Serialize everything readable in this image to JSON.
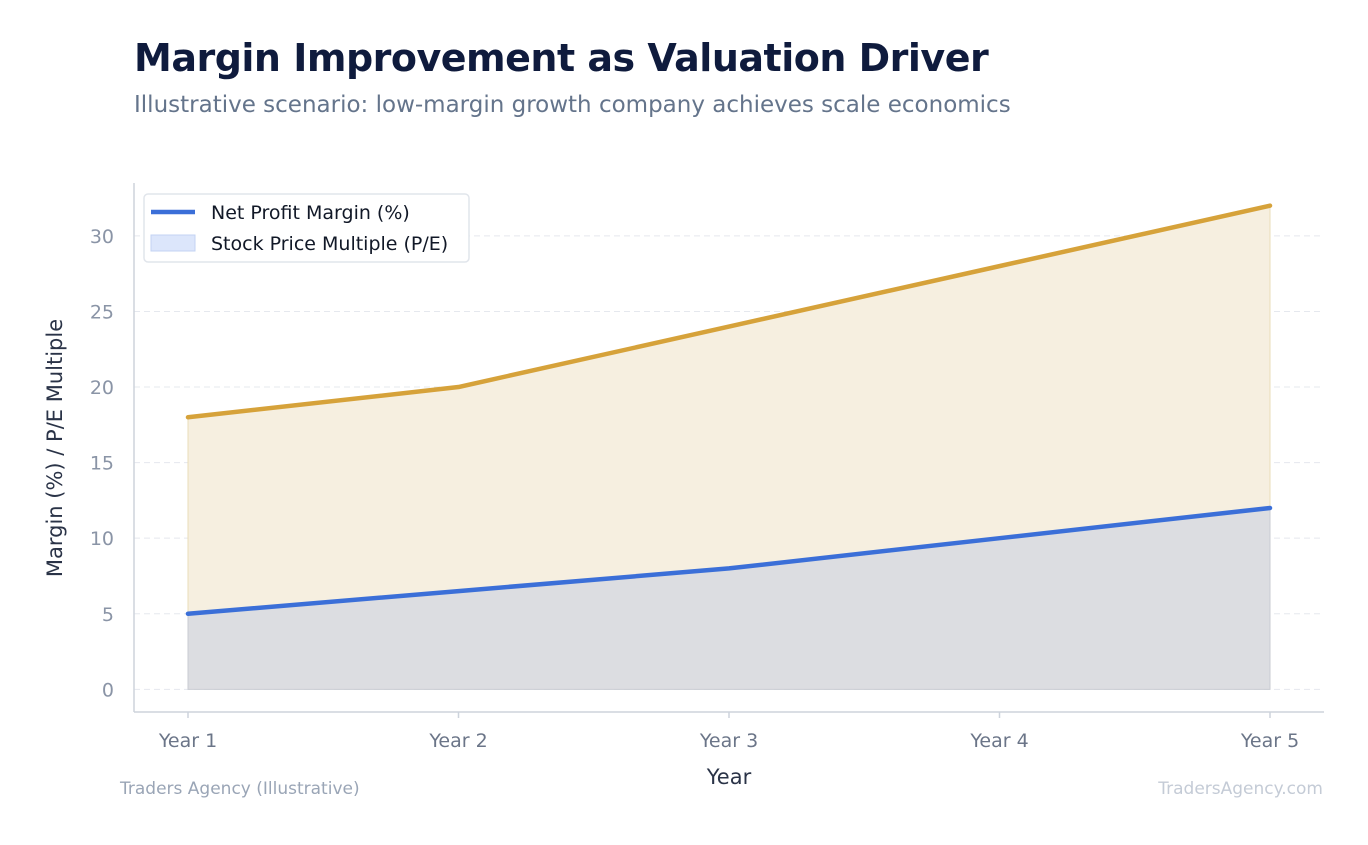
{
  "title": "Margin Improvement as Valuation Driver",
  "subtitle": "Illustrative scenario: low-margin growth company achieves scale economics",
  "footer": {
    "source": "Traders Agency (Illustrative)",
    "watermark": "TradersAgency.com"
  },
  "colors": {
    "margin_line": "#3b6fd8",
    "margin_fill": "#dcdde1",
    "pe_line": "#d6a23a",
    "pe_fill": "#f6efe0",
    "legend_pe_swatch": "#dce6fb"
  },
  "chart_data": {
    "type": "area",
    "categories": [
      "Year 1",
      "Year 2",
      "Year 3",
      "Year 4",
      "Year 5"
    ],
    "series": [
      {
        "name": "Net Profit Margin (%)",
        "values": [
          5,
          6.5,
          8,
          10,
          12
        ]
      },
      {
        "name": "Stock Price Multiple (P/E)",
        "values": [
          18,
          20,
          24,
          28,
          32
        ]
      }
    ],
    "xlabel": "Year",
    "ylabel": "Margin (%) / P/E Multiple",
    "yticks": [
      0,
      5,
      10,
      15,
      20,
      25,
      30
    ],
    "ylim": [
      -1.5,
      33.5
    ],
    "grid": true,
    "legend_position": "top-left"
  }
}
